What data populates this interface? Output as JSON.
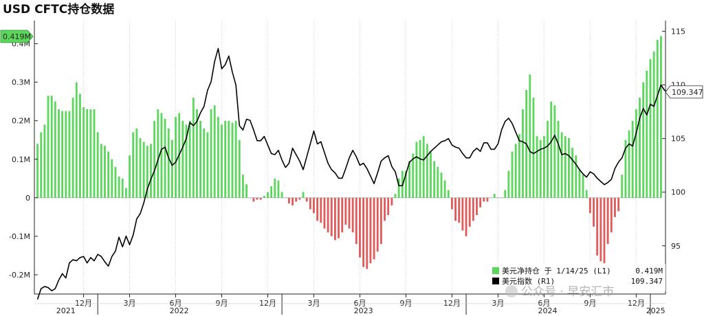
{
  "chart_data": {
    "type": "bar+line",
    "title": "USD CFTC持仓数据",
    "left_axis": {
      "ylim": [
        -0.25,
        0.46
      ],
      "ticks": [
        0.4,
        0.3,
        0.2,
        0.1,
        0,
        -0.1,
        -0.2
      ],
      "tick_labels": [
        "0.4M",
        "0.3M",
        "0.2M",
        "0.1M",
        "0",
        "-0.1M",
        "-0.2M"
      ]
    },
    "right_axis": {
      "ylim": [
        90.5,
        116
      ],
      "ticks": [
        115,
        110,
        105,
        100,
        95
      ],
      "tick_labels": [
        "115",
        "110",
        "105",
        "100",
        "95"
      ]
    },
    "x_month_ticks": [
      {
        "label": "12月",
        "week": 13
      },
      {
        "label": "3月",
        "week": 26
      },
      {
        "label": "6月",
        "week": 39
      },
      {
        "label": "9月",
        "week": 52
      },
      {
        "label": "12月",
        "week": 65
      },
      {
        "label": "3月",
        "week": 78
      },
      {
        "label": "6月",
        "week": 91
      },
      {
        "label": "9月",
        "week": 104
      },
      {
        "label": "12月",
        "week": 117
      },
      {
        "label": "3月",
        "week": 130
      },
      {
        "label": "6月",
        "week": 143
      },
      {
        "label": "9月",
        "week": 156
      },
      {
        "label": "12月",
        "week": 169
      }
    ],
    "x_year_labels": [
      {
        "label": "2021",
        "week": 8
      },
      {
        "label": "2022",
        "week": 40
      },
      {
        "label": "2023",
        "week": 92
      },
      {
        "label": "2024",
        "week": 144
      },
      {
        "label": "2025",
        "week": 174.5
      }
    ],
    "x_year_dividers": [
      17,
      69,
      121,
      173
    ],
    "bar_series": {
      "name": "美元净持仓",
      "color_positive": "#5cd65c",
      "color_negative": "#e05a5a",
      "values": [
        0.14,
        0.17,
        0.19,
        0.265,
        0.265,
        0.25,
        0.23,
        0.225,
        0.225,
        0.225,
        0.26,
        0.3,
        0.27,
        0.235,
        0.23,
        0.23,
        0.23,
        0.17,
        0.14,
        0.135,
        0.12,
        0.1,
        0.08,
        0.055,
        0.05,
        0.025,
        0.11,
        0.17,
        0.18,
        0.155,
        0.145,
        0.135,
        0.14,
        0.2,
        0.23,
        0.22,
        0.205,
        0.18,
        0.15,
        0.21,
        0.22,
        0.2,
        0.19,
        0.2,
        0.26,
        0.23,
        0.2,
        0.18,
        0.17,
        0.23,
        0.24,
        0.21,
        0.19,
        0.2,
        0.2,
        0.195,
        0.2,
        0.15,
        0.06,
        0.035,
        0.0,
        -0.01,
        -0.005,
        -0.005,
        0.005,
        0.015,
        0.03,
        0.05,
        0.045,
        0.015,
        0.0,
        -0.015,
        -0.02,
        -0.01,
        -0.005,
        0.015,
        -0.01,
        -0.03,
        -0.04,
        -0.06,
        -0.065,
        -0.08,
        -0.09,
        -0.1,
        -0.11,
        -0.105,
        -0.09,
        -0.07,
        -0.08,
        -0.09,
        -0.12,
        -0.155,
        -0.18,
        -0.185,
        -0.17,
        -0.16,
        -0.14,
        -0.12,
        -0.06,
        -0.045,
        -0.02,
        0.01,
        0.05,
        0.07,
        0.07,
        0.095,
        0.115,
        0.145,
        0.15,
        0.16,
        0.14,
        0.12,
        0.095,
        0.08,
        0.065,
        0.045,
        0.02,
        -0.03,
        -0.06,
        -0.065,
        -0.085,
        -0.1,
        -0.075,
        -0.06,
        -0.045,
        -0.025,
        -0.01,
        -0.01,
        0.0,
        0.01,
        0.0,
        0.0,
        0.02,
        0.07,
        0.12,
        0.14,
        0.165,
        0.23,
        0.28,
        0.32,
        0.26,
        0.16,
        0.15,
        0.16,
        0.2,
        0.25,
        0.24,
        0.2,
        0.17,
        0.16,
        0.155,
        0.13,
        0.11,
        0.075,
        0.06,
        0.02,
        -0.04,
        -0.075,
        -0.15,
        -0.165,
        -0.17,
        -0.12,
        -0.09,
        -0.05,
        -0.035,
        0.06,
        0.15,
        0.175,
        0.2,
        0.23,
        0.26,
        0.3,
        0.33,
        0.36,
        0.38,
        0.41,
        0.42
      ],
      "last": {
        "date": "1/14/25",
        "axis": "L1",
        "value": 0.419,
        "label": "0.419M"
      }
    },
    "line_series": {
      "name": "美元指数",
      "color": "#000000",
      "values": [
        90.0,
        91.0,
        91.2,
        91.1,
        90.8,
        91.0,
        91.8,
        92.4,
        92.0,
        93.4,
        93.7,
        93.6,
        93.9,
        94.0,
        93.4,
        93.9,
        93.6,
        94.2,
        94.0,
        93.5,
        93.1,
        94.0,
        94.5,
        95.8,
        94.9,
        95.9,
        95.1,
        96.0,
        97.5,
        98.0,
        99.0,
        100.3,
        101.2,
        102.0,
        103.0,
        104.0,
        104.2,
        103.2,
        102.5,
        102.8,
        103.5,
        104.2,
        105.0,
        106.5,
        106.2,
        106.6,
        107.4,
        108.0,
        109.5,
        110.3,
        112.2,
        113.4,
        111.5,
        111.9,
        112.7,
        111.2,
        110.0,
        106.2,
        105.8,
        106.8,
        106.7,
        105.8,
        104.8,
        104.8,
        105.2,
        104.4,
        103.6,
        103.5,
        103.9,
        103.0,
        102.3,
        102.7,
        104.1,
        103.5,
        102.9,
        102.1,
        103.3,
        104.5,
        105.7,
        104.5,
        104.7,
        103.7,
        102.7,
        102.1,
        101.8,
        101.3,
        101.3,
        102.2,
        103.2,
        103.9,
        103.3,
        102.5,
        102.7,
        102.2,
        101.5,
        100.8,
        101.8,
        102.9,
        103.2,
        103.4,
        102.4,
        101.9,
        100.6,
        100.6,
        101.7,
        102.8,
        103.1,
        103.3,
        103.1,
        103.0,
        103.4,
        103.8,
        104.1,
        104.4,
        104.7,
        104.8,
        105.0,
        104.4,
        104.2,
        104.1,
        103.6,
        103.2,
        103.2,
        103.8,
        104.1,
        103.8,
        104.6,
        104.6,
        104.0,
        104.0,
        104.5,
        105.8,
        106.6,
        106.9,
        106.4,
        105.6,
        104.8,
        104.7,
        104.5,
        103.8,
        103.6,
        103.8,
        104.0,
        104.1,
        104.3,
        104.7,
        105.3,
        104.5,
        103.5,
        103.6,
        103.4,
        103.0,
        102.6,
        102.1,
        101.7,
        101.4,
        101.9,
        101.7,
        101.3,
        101.0,
        100.7,
        100.9,
        101.2,
        102.2,
        102.8,
        103.2,
        104.1,
        104.5,
        104.3,
        105.5,
        106.9,
        107.8,
        107.2,
        108.2,
        108.0,
        109.0,
        110.0,
        109.5,
        109.35
      ],
      "last": {
        "axis": "R1",
        "value": 109.347,
        "label": "109.347"
      }
    },
    "legend": [
      {
        "marker_color": "#5cd65c",
        "text": "美元净持仓 于 1/14/25 (L1)",
        "value": "0.419M"
      },
      {
        "marker_color": "#000000",
        "text": "美元指数 (R1)",
        "value": "109.347"
      }
    ],
    "grid": "vertical",
    "legend_position": "bottom-right",
    "watermark": "公众号 · 早安汇市"
  }
}
